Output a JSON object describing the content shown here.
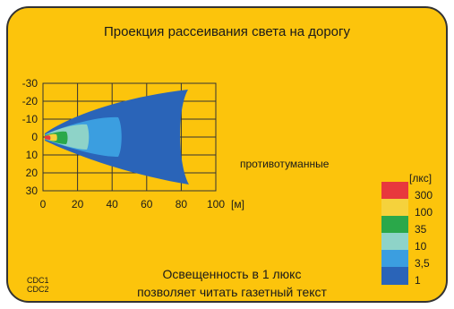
{
  "title": "Проекция рассеивания света на дорогу",
  "fog_label": "противотуманные",
  "codes": [
    "CDC1",
    "CDC2"
  ],
  "caption": [
    "Освещенность в 1 люкс",
    "позволяет читать газетный текст"
  ],
  "axis": {
    "y_ticks": [
      "-30",
      "-20",
      "-10",
      "0",
      "10",
      "20",
      "30"
    ],
    "x_ticks": [
      "0",
      "20",
      "40",
      "60",
      "80",
      "100"
    ],
    "x_unit": "[м]"
  },
  "legend": {
    "unit": "[лкс]",
    "values": [
      "300",
      "100",
      "35",
      "10",
      "3,5",
      "1"
    ],
    "colors": [
      "#e8383d",
      "#f5d23c",
      "#2aa84a",
      "#8ed3c8",
      "#3b9ee0",
      "#2a64b8"
    ]
  },
  "colors": {
    "background": "#fcc40c",
    "border": "#333333",
    "lux_1": "#2a64b8",
    "lux_3_5": "#3b9ee0",
    "lux_10": "#8ed3c8",
    "lux_35": "#2aa84a",
    "lux_100": "#f5d23c",
    "lux_300": "#e8383d"
  }
}
